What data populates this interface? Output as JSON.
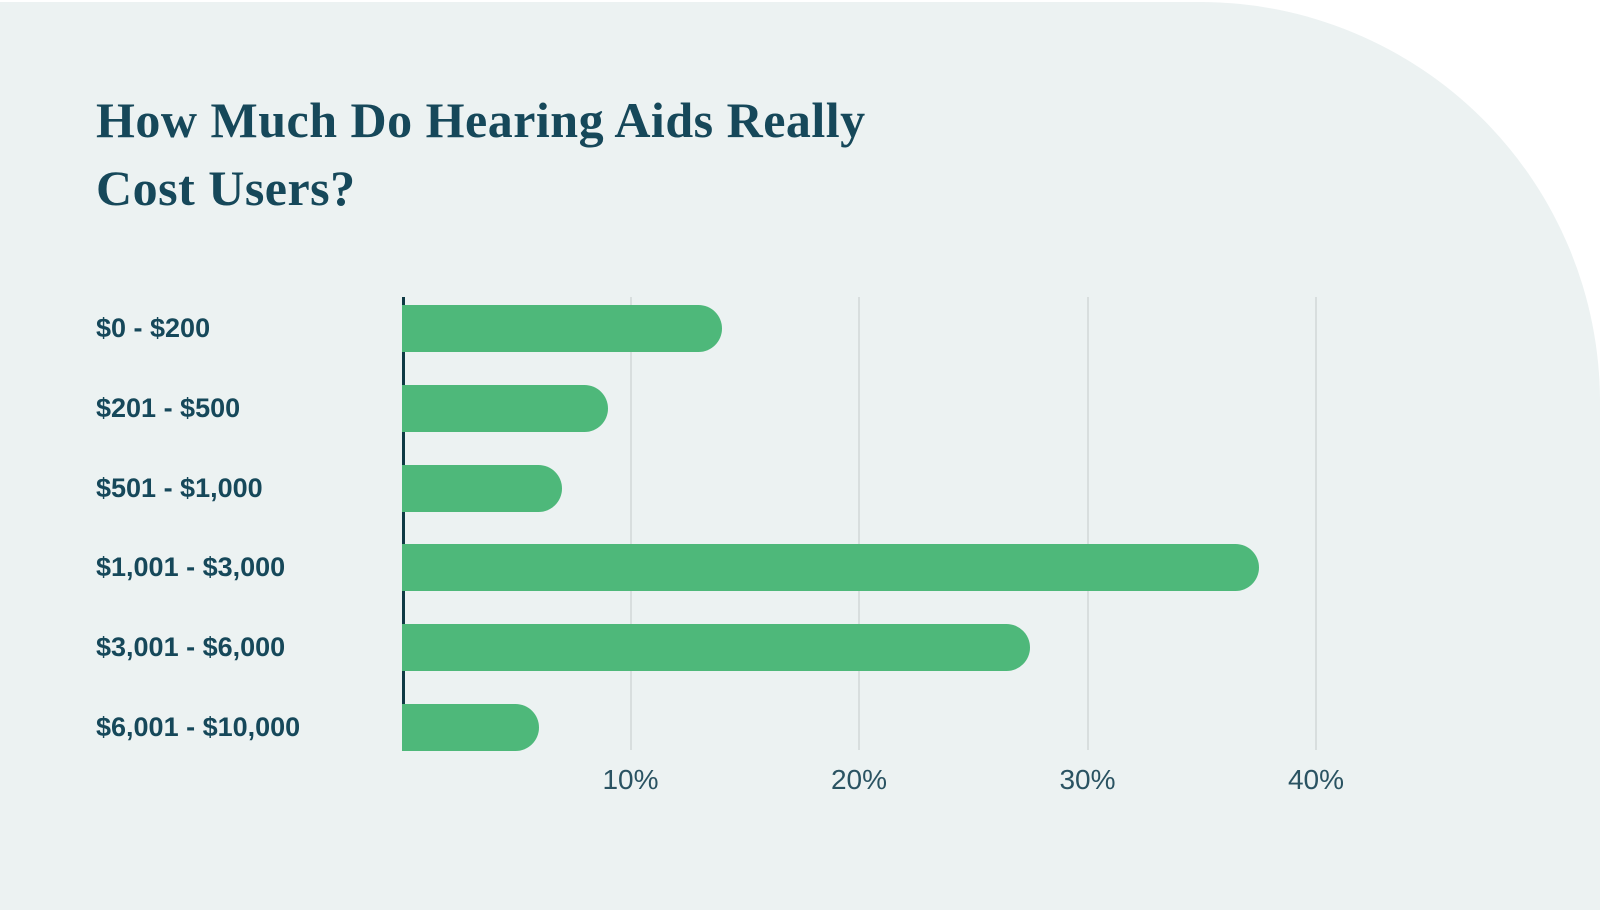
{
  "title": {
    "lines": [
      "How Much Do Hearing Aids Really",
      "Cost Users?"
    ]
  },
  "colors": {
    "page_background": "#FFFFFF",
    "panel_background": "#ECF2F2",
    "title_text": "#16485A",
    "category_label_text": "#16485A",
    "tick_label_text": "#2A5362",
    "bar_fill": "#4EB87A",
    "axis_line": "#0E3A44",
    "gridline": "#D8DEDE"
  },
  "chart_data": {
    "type": "bar",
    "orientation": "horizontal",
    "title": "How Much Do Hearing Aids Really Cost Users?",
    "categories": [
      "$0 - $200",
      "$201 - $500",
      "$501 - $1,000",
      "$1,001 - $3,000",
      "$3,001 - $6,000",
      "$6,001 - $10,000"
    ],
    "values": [
      14,
      9,
      7,
      37.5,
      27.5,
      6
    ],
    "value_unit": "percent of users",
    "xlabel": "",
    "ylabel": "",
    "xlim": [
      0,
      48
    ],
    "xticks": [
      {
        "value": 10,
        "label": "10%"
      },
      {
        "value": 20,
        "label": "20%"
      },
      {
        "value": 30,
        "label": "30%"
      },
      {
        "value": 40,
        "label": "40%"
      }
    ],
    "grid": "vertical-lines-only",
    "legend": "none",
    "bar_style": "rounded-right-cap"
  }
}
